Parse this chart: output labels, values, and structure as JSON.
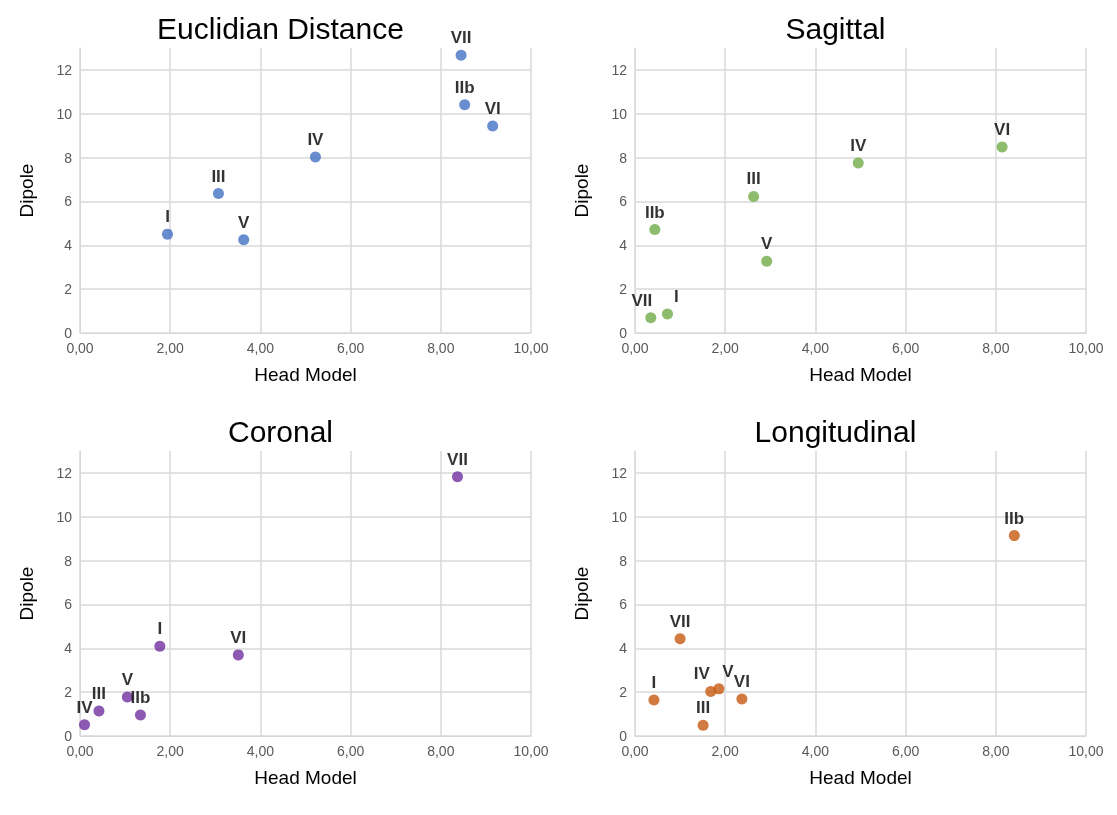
{
  "chart_data": [
    {
      "type": "scatter",
      "title": "Euclidian Distance",
      "xlabel": "Head Model",
      "ylabel": "Dipole",
      "xlim": [
        0,
        10
      ],
      "ylim": [
        0,
        13
      ],
      "xticks": [
        {
          "value": 0,
          "label": "0,00"
        },
        {
          "value": 2,
          "label": "2,00"
        },
        {
          "value": 4,
          "label": "4,00"
        },
        {
          "value": 6,
          "label": "6,00"
        },
        {
          "value": 8,
          "label": "8,00"
        },
        {
          "value": 10,
          "label": "10,00"
        }
      ],
      "yticks": [
        0,
        2,
        4,
        6,
        8,
        10,
        12
      ],
      "grid": true,
      "marker": "circle",
      "series": [
        {
          "color": "#4472c4",
          "x": [
            1.94,
            3.07,
            3.63,
            5.22,
            8.45,
            8.53,
            9.15
          ],
          "values": [
            4.51,
            6.36,
            4.25,
            8.03,
            12.67,
            10.41,
            9.44
          ]
        }
      ],
      "annotations": [
        {
          "text": "I",
          "x": 1.94,
          "y": 4.51
        },
        {
          "text": "III",
          "x": 3.07,
          "y": 6.36
        },
        {
          "text": "V",
          "x": 3.63,
          "y": 4.25
        },
        {
          "text": "IV",
          "x": 5.22,
          "y": 8.03
        },
        {
          "text": "VII",
          "x": 8.45,
          "y": 12.67
        },
        {
          "text": "IIb",
          "x": 8.53,
          "y": 10.41
        },
        {
          "text": "VI",
          "x": 9.15,
          "y": 9.44
        }
      ]
    },
    {
      "type": "scatter",
      "title": "Sagittal",
      "xlabel": "Head Model",
      "ylabel": "Dipole",
      "xlim": [
        0,
        10
      ],
      "ylim": [
        0,
        13
      ],
      "xticks": [
        {
          "value": 0,
          "label": "0,00"
        },
        {
          "value": 2,
          "label": "2,00"
        },
        {
          "value": 4,
          "label": "4,00"
        },
        {
          "value": 6,
          "label": "6,00"
        },
        {
          "value": 8,
          "label": "8,00"
        },
        {
          "value": 10,
          "label": "10,00"
        }
      ],
      "yticks": [
        0,
        2,
        4,
        6,
        8,
        10,
        12
      ],
      "grid": true,
      "marker": "circle",
      "series": [
        {
          "color": "#70ad47",
          "x": [
            0.35,
            0.72,
            0.44,
            2.63,
            2.92,
            4.95,
            8.14
          ],
          "values": [
            0.7,
            0.87,
            4.72,
            6.23,
            3.27,
            7.75,
            8.48
          ]
        }
      ],
      "annotations": [
        {
          "text": "VII",
          "x": 0.35,
          "y": 0.7
        },
        {
          "text": "I",
          "x": 0.72,
          "y": 0.87
        },
        {
          "text": "IIb",
          "x": 0.44,
          "y": 4.72
        },
        {
          "text": "III",
          "x": 2.63,
          "y": 6.23
        },
        {
          "text": "V",
          "x": 2.92,
          "y": 3.27
        },
        {
          "text": "IV",
          "x": 4.95,
          "y": 7.75
        },
        {
          "text": "VI",
          "x": 8.14,
          "y": 8.48
        }
      ]
    },
    {
      "type": "scatter",
      "title": "Coronal",
      "xlabel": "Head Model",
      "ylabel": "Dipole",
      "xlim": [
        0,
        10
      ],
      "ylim": [
        0,
        13
      ],
      "xticks": [
        {
          "value": 0,
          "label": "0,00"
        },
        {
          "value": 2,
          "label": "2,00"
        },
        {
          "value": 4,
          "label": "4,00"
        },
        {
          "value": 6,
          "label": "6,00"
        },
        {
          "value": 8,
          "label": "8,00"
        },
        {
          "value": 10,
          "label": "10,00"
        }
      ],
      "yticks": [
        0,
        2,
        4,
        6,
        8,
        10,
        12
      ],
      "grid": true,
      "marker": "circle",
      "series": [
        {
          "color": "#7030a0",
          "x": [
            0.1,
            0.42,
            1.05,
            1.34,
            1.77,
            3.51,
            8.37
          ],
          "values": [
            0.51,
            1.14,
            1.78,
            0.96,
            4.09,
            3.7,
            11.83
          ]
        }
      ],
      "annotations": [
        {
          "text": "IV",
          "x": 0.1,
          "y": 0.51
        },
        {
          "text": "III",
          "x": 0.42,
          "y": 1.14
        },
        {
          "text": "V",
          "x": 1.05,
          "y": 1.78
        },
        {
          "text": "IIb",
          "x": 1.34,
          "y": 0.96
        },
        {
          "text": "I",
          "x": 1.77,
          "y": 4.09
        },
        {
          "text": "VI",
          "x": 3.51,
          "y": 3.7
        },
        {
          "text": "VII",
          "x": 8.37,
          "y": 11.83
        }
      ]
    },
    {
      "type": "scatter",
      "title": "Longitudinal",
      "xlabel": "Head Model",
      "ylabel": "Dipole",
      "xlim": [
        0,
        10
      ],
      "ylim": [
        0,
        13
      ],
      "xticks": [
        {
          "value": 0,
          "label": "0,00"
        },
        {
          "value": 2,
          "label": "2,00"
        },
        {
          "value": 4,
          "label": "4,00"
        },
        {
          "value": 6,
          "label": "6,00"
        },
        {
          "value": 8,
          "label": "8,00"
        },
        {
          "value": 10,
          "label": "10,00"
        }
      ],
      "yticks": [
        0,
        2,
        4,
        6,
        8,
        10,
        12
      ],
      "grid": true,
      "marker": "circle",
      "series": [
        {
          "color": "#c55a11",
          "x": [
            0.42,
            1.0,
            1.68,
            1.86,
            2.37,
            1.51,
            8.41
          ],
          "values": [
            1.64,
            4.44,
            2.03,
            2.15,
            1.69,
            0.49,
            9.14
          ]
        }
      ],
      "annotations": [
        {
          "text": "I",
          "x": 0.42,
          "y": 1.64
        },
        {
          "text": "VII",
          "x": 1.0,
          "y": 4.44
        },
        {
          "text": "IV",
          "x": 1.68,
          "y": 2.03
        },
        {
          "text": "V",
          "x": 1.86,
          "y": 2.15
        },
        {
          "text": "VI",
          "x": 2.37,
          "y": 1.69
        },
        {
          "text": "III",
          "x": 1.51,
          "y": 0.49
        },
        {
          "text": "IIb",
          "x": 8.41,
          "y": 9.14
        }
      ]
    }
  ]
}
